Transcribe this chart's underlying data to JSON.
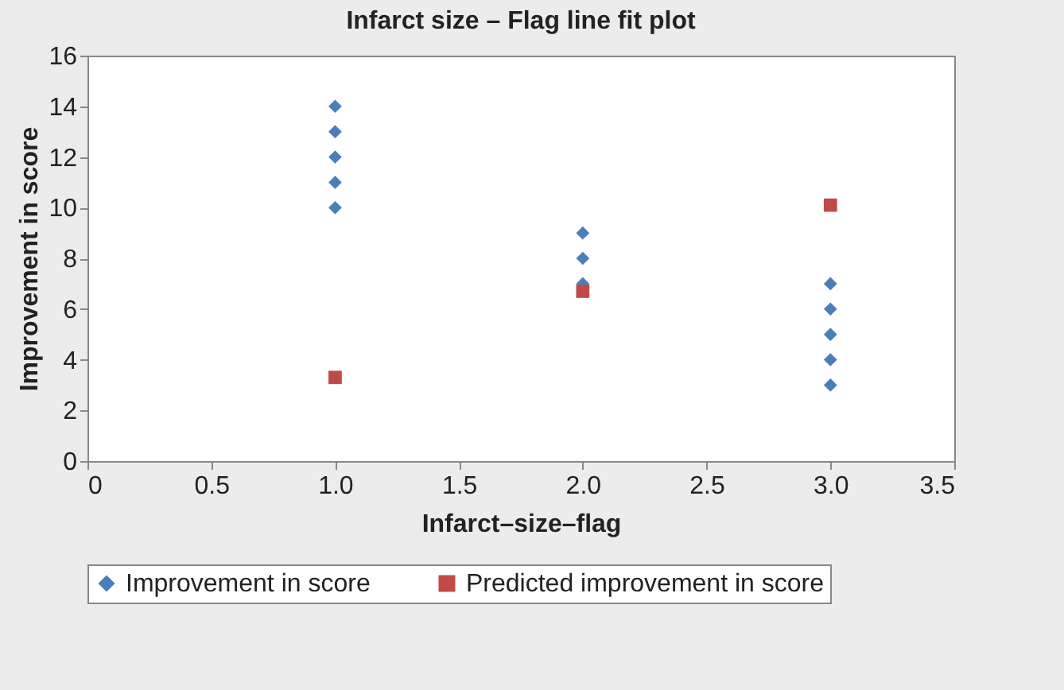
{
  "chart_data": {
    "type": "scatter",
    "title": "Infarct size – Flag line fit plot",
    "xlabel": "Infarct–size–flag",
    "ylabel": "Improvement in score",
    "xlim": [
      0,
      3.5
    ],
    "xticks": [
      0,
      0.5,
      {
        "value": 1,
        "label": "1.0"
      },
      1.5,
      {
        "value": 2,
        "label": "2.0"
      },
      2.5,
      {
        "value": 3,
        "label": "3.0"
      },
      3.5
    ],
    "ylim": [
      0,
      16
    ],
    "yticks": [
      0,
      2,
      4,
      6,
      8,
      10,
      12,
      14,
      16
    ],
    "grid": false,
    "legend": "bottom",
    "series": [
      {
        "name": "Improvement in score",
        "color": "#4a7ebb",
        "marker": "diamond",
        "x": [
          1,
          1,
          1,
          1,
          1,
          2,
          2,
          2,
          3,
          3,
          3,
          3,
          3
        ],
        "values": [
          10,
          11,
          12,
          13,
          14,
          7,
          8,
          9,
          3,
          4,
          5,
          6,
          7
        ]
      },
      {
        "name": "Predicted improvement in score",
        "color": "#be4b48",
        "marker": "square",
        "x": [
          1,
          2,
          3
        ],
        "values": [
          3.3,
          6.7,
          10.1
        ]
      }
    ]
  }
}
